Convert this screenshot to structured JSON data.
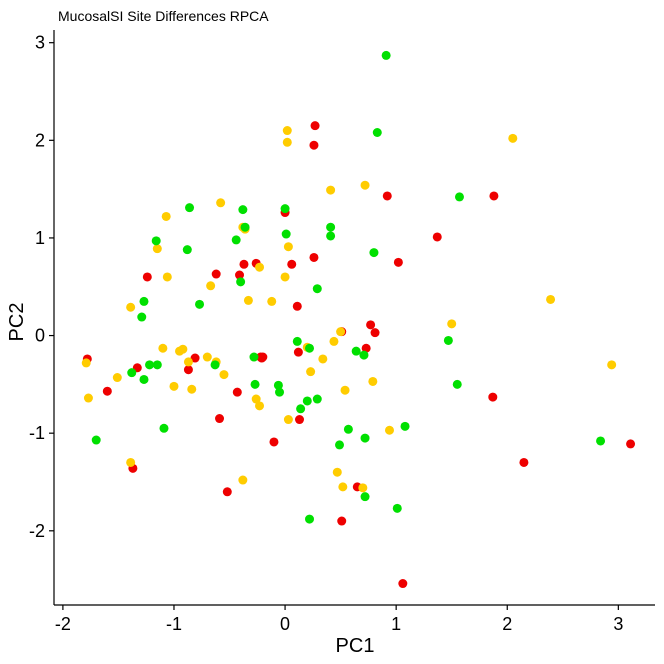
{
  "chart_data": {
    "type": "scatter",
    "title": "MucosalSI Site Differences RPCA",
    "xlabel": "PC1",
    "ylabel": "PC2",
    "xlim": [
      -2.08,
      3.33
    ],
    "ylim": [
      -2.76,
      3.13
    ],
    "xticks": [
      -2,
      -1,
      0,
      1,
      2,
      3
    ],
    "yticks": [
      -2,
      -1,
      0,
      1,
      2,
      3
    ],
    "grid": false,
    "legend": "none",
    "colors": {
      "red": "#ee0000",
      "yellow": "#ffcc00",
      "green": "#00e000"
    },
    "series": [
      {
        "color": "#ee0000",
        "x": [
          0.27,
          0.26,
          0.92,
          1.88,
          1.37,
          1.02,
          -1.24,
          -0.62,
          -0.37,
          -0.26,
          -0.41,
          0.0,
          0.06,
          0.26,
          0.11,
          0.51,
          0.77,
          0.81,
          0.73,
          0.12,
          -0.22,
          -0.2,
          -0.81,
          -1.33,
          -0.87,
          -1.78,
          -1.6,
          -0.59,
          -0.43,
          -0.21,
          -0.52,
          -1.37,
          0.13,
          1.87,
          2.15,
          3.11,
          0.51,
          0.65,
          1.06,
          -0.1
        ],
        "y": [
          2.15,
          1.95,
          1.43,
          1.43,
          1.01,
          0.75,
          0.6,
          0.63,
          0.73,
          0.74,
          0.62,
          1.26,
          0.73,
          0.8,
          0.3,
          0.04,
          0.11,
          0.03,
          -0.13,
          -0.17,
          -0.22,
          -0.22,
          -0.23,
          -0.33,
          -0.35,
          -0.24,
          -0.57,
          -0.85,
          -0.58,
          -0.23,
          -1.6,
          -1.36,
          -0.86,
          -0.63,
          -1.3,
          -1.11,
          -1.9,
          -1.55,
          -2.54,
          -1.09
        ]
      },
      {
        "color": "#ffcc00",
        "x": [
          0.02,
          0.02,
          2.05,
          0.41,
          0.72,
          -1.07,
          -0.58,
          -0.38,
          -0.23,
          0.03,
          -0.33,
          -1.15,
          -1.06,
          -0.67,
          0.0,
          -1.39,
          -0.36,
          -0.12,
          0.2,
          0.34,
          0.44,
          0.5,
          1.5,
          2.39,
          2.94,
          -1.79,
          -1.77,
          -1.51,
          -1.1,
          -0.95,
          -1.0,
          -0.92,
          -0.84,
          -0.7,
          -0.62,
          -0.55,
          -0.87,
          -0.26,
          -0.23,
          0.03,
          0.23,
          0.54,
          0.79,
          0.94,
          0.47,
          0.52,
          0.7,
          -1.39,
          -0.38
        ],
        "y": [
          2.1,
          1.98,
          2.02,
          1.49,
          1.54,
          1.22,
          1.36,
          1.11,
          0.7,
          0.91,
          0.36,
          0.89,
          0.6,
          0.51,
          0.6,
          0.29,
          1.09,
          0.35,
          -0.12,
          -0.24,
          -0.06,
          0.04,
          0.12,
          0.37,
          -0.3,
          -0.28,
          -0.64,
          -0.43,
          -0.13,
          -0.16,
          -0.52,
          -0.14,
          -0.55,
          -0.22,
          -0.27,
          -0.4,
          -0.27,
          -0.65,
          -0.72,
          -0.86,
          -0.37,
          -0.56,
          -0.47,
          -0.97,
          -1.4,
          -1.55,
          -1.56,
          -1.3,
          -1.48
        ]
      },
      {
        "color": "#00e000",
        "x": [
          0.91,
          0.83,
          1.57,
          -0.86,
          -0.38,
          -0.36,
          -0.44,
          0.0,
          0.01,
          0.41,
          0.41,
          -1.16,
          -0.88,
          0.8,
          0.29,
          -0.4,
          -0.77,
          -1.27,
          -1.29,
          -0.63,
          0.11,
          0.22,
          0.64,
          0.71,
          1.47,
          1.55,
          -1.15,
          -1.22,
          -1.38,
          -1.27,
          -1.09,
          -0.27,
          -0.28,
          -0.06,
          -0.05,
          0.14,
          0.2,
          0.29,
          0.57,
          0.49,
          0.72,
          0.72,
          1.08,
          1.01,
          2.84,
          -1.7,
          0.22
        ],
        "y": [
          2.87,
          2.08,
          1.42,
          1.31,
          1.29,
          1.11,
          0.98,
          1.3,
          1.04,
          1.11,
          1.02,
          0.97,
          0.88,
          0.85,
          0.48,
          0.55,
          0.32,
          0.35,
          0.19,
          -0.3,
          -0.06,
          -0.13,
          -0.16,
          -0.2,
          -0.05,
          -0.5,
          -0.3,
          -0.3,
          -0.38,
          -0.45,
          -0.95,
          -0.5,
          -0.22,
          -0.51,
          -0.58,
          -0.75,
          -0.67,
          -0.65,
          -0.96,
          -1.12,
          -1.05,
          -1.65,
          -0.93,
          -1.77,
          -1.08,
          -1.07,
          -1.88
        ]
      }
    ]
  }
}
